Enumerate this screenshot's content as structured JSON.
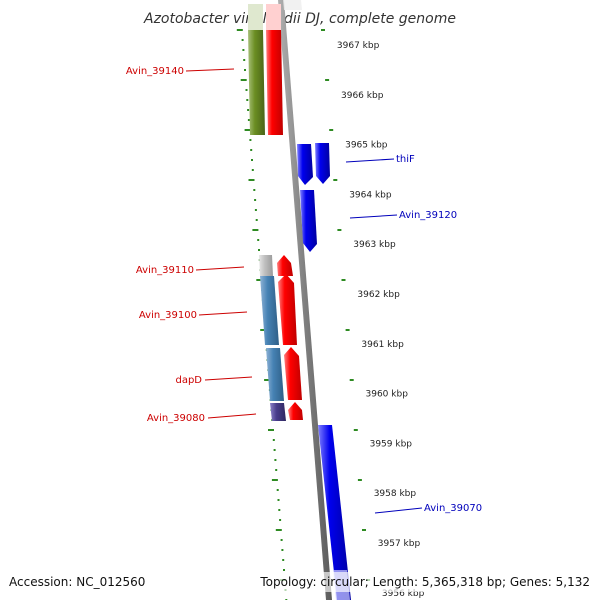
{
  "title": "Azotobacter vinelandii DJ, complete genome",
  "footer": {
    "accession": "Accession: NC_012560",
    "topology": "Topology: circular; Length: 5,365,318 bp; Genes: 5,132"
  },
  "colors": {
    "backbone": "#7f7f7f",
    "tick": "#2e8b22",
    "label_left": "#cc0000",
    "label_right": "#0000bb",
    "gene_red": "#ff0000",
    "gene_blue": "#0000ee",
    "feature_olive": "#6b8e23",
    "feature_steelblue": "#4682b4",
    "feature_gray": "#c0c0c0",
    "feature_slate": "#483d8b"
  },
  "kbp_labels": [
    "3967 kbp",
    "3966 kbp",
    "3965 kbp",
    "3964 kbp",
    "3963 kbp",
    "3962 kbp",
    "3961 kbp",
    "3960 kbp",
    "3959 kbp",
    "3958 kbp",
    "3957 kbp",
    "3956 kbp"
  ],
  "genes_left": [
    {
      "label": "Avin_39140"
    },
    {
      "label": "Avin_39110"
    },
    {
      "label": "Avin_39100"
    },
    {
      "label": "dapD"
    },
    {
      "label": "Avin_39080"
    }
  ],
  "genes_right": [
    {
      "label": "thiF"
    },
    {
      "label": "Avin_39120"
    },
    {
      "label": "Avin_39070"
    }
  ]
}
